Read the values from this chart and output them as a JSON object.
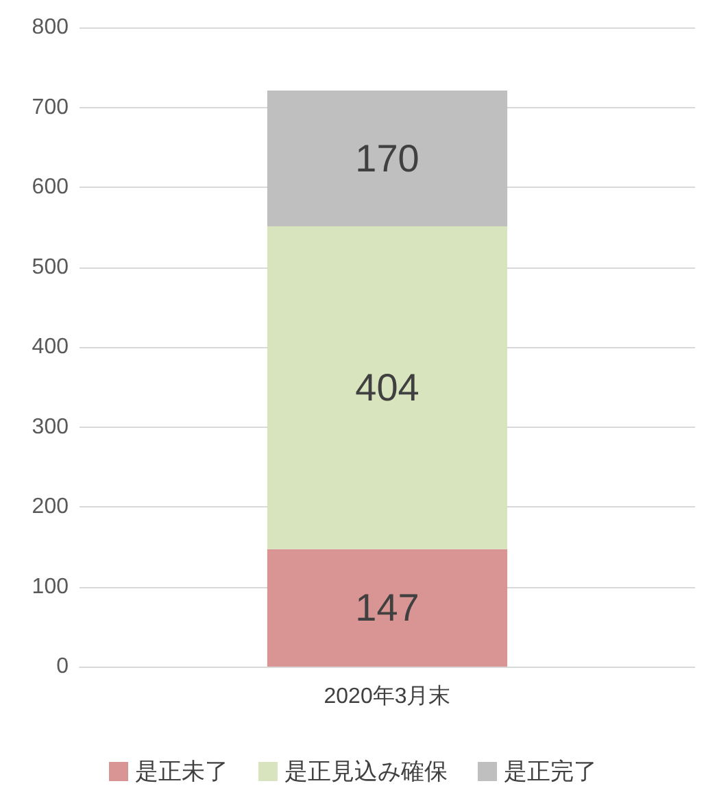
{
  "chart_data": {
    "type": "bar",
    "stacked": true,
    "categories": [
      "2020年3月末"
    ],
    "series": [
      {
        "name": "是正未了",
        "color": "#d99594",
        "values": [
          147
        ]
      },
      {
        "name": "是正見込み確保",
        "color": "#d7e4bd",
        "values": [
          404
        ]
      },
      {
        "name": "是正完了",
        "color": "#bfbfbf",
        "values": [
          170
        ]
      }
    ],
    "ylim": [
      0,
      800
    ],
    "yticks": [
      0,
      100,
      200,
      300,
      400,
      500,
      600,
      700,
      800
    ],
    "grid": "y",
    "legend": "bottom",
    "data_labels": true
  }
}
